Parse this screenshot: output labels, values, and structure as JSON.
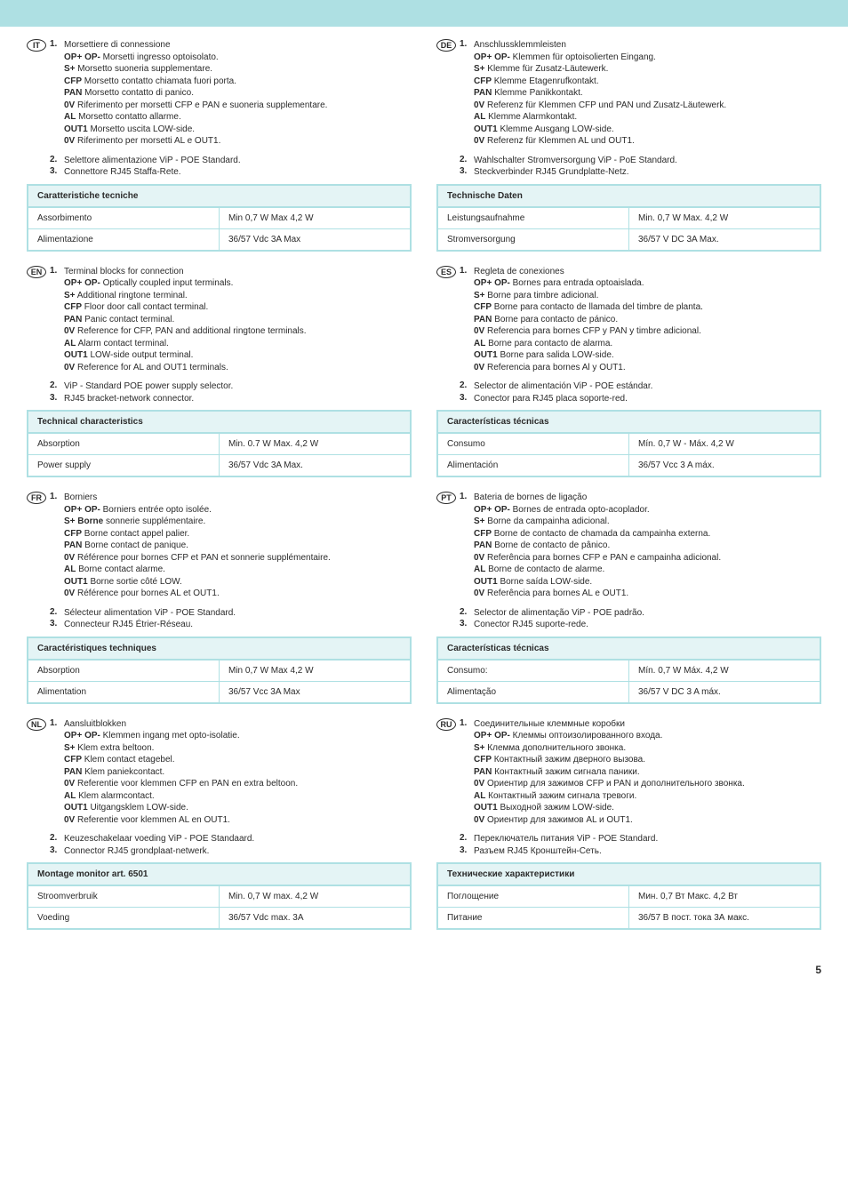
{
  "footer_page": "5",
  "table_header_bg": "#e4f4f5",
  "accent_border": "#aee0e3",
  "sections": [
    {
      "lang": "IT",
      "items": [
        {
          "n": "1.",
          "title": "Morsettiere di connessione",
          "lines": [
            [
              "OP+ OP-",
              " Morsetti ingresso optoisolato."
            ],
            [
              "S+",
              " Morsetto suoneria supplementare."
            ],
            [
              "CFP",
              " Morsetto contatto chiamata fuori porta."
            ],
            [
              "PAN",
              " Morsetto contatto di panico."
            ],
            [
              "0V",
              " Riferimento per morsetti CFP e PAN e suoneria supplementare."
            ],
            [
              "AL",
              " Morsetto contatto allarme."
            ],
            [
              "OUT1",
              " Morsetto uscita LOW-side."
            ],
            [
              "0V",
              " Riferimento per morsetti AL e OUT1."
            ]
          ]
        },
        {
          "n": "2.",
          "plain": "Selettore alimentazione ViP - POE Standard."
        },
        {
          "n": "3.",
          "plain": "Connettore RJ45 Staffa-Rete."
        }
      ],
      "table": {
        "header": "Caratteristiche tecniche",
        "rows": [
          [
            "Assorbimento",
            "Min 0,7 W Max  4,2 W"
          ],
          [
            "Alimentazione",
            "36/57 Vdc 3A Max"
          ]
        ]
      }
    },
    {
      "lang": "DE",
      "items": [
        {
          "n": "1.",
          "title": "Anschlussklemmleisten",
          "lines": [
            [
              "OP+ OP-",
              " Klemmen für optoisolierten Eingang."
            ],
            [
              "S+",
              " Klemme für Zusatz-Läutewerk."
            ],
            [
              "CFP",
              " Klemme Etagenrufkontakt."
            ],
            [
              "PAN",
              " Klemme Panikkontakt."
            ],
            [
              "0V",
              " Referenz für Klemmen CFP und PAN und Zusatz-Läutewerk."
            ],
            [
              "AL",
              " Klemme Alarmkontakt."
            ],
            [
              "OUT1",
              " Klemme Ausgang LOW-side."
            ],
            [
              "0V",
              " Referenz für Klemmen AL und OUT1."
            ]
          ]
        },
        {
          "n": "2.",
          "plain": "Wahlschalter Stromversorgung ViP - PoE Standard."
        },
        {
          "n": "3.",
          "plain": "Steckverbinder RJ45 Grundplatte-Netz."
        }
      ],
      "table": {
        "header": "Technische Daten",
        "rows": [
          [
            "Leistungsaufnahme",
            "Min. 0,7 W Max.  4,2 W"
          ],
          [
            "Stromversorgung",
            "36/57 V DC 3A Max."
          ]
        ]
      }
    },
    {
      "lang": "EN",
      "items": [
        {
          "n": "1.",
          "title": "Terminal blocks for connection",
          "lines": [
            [
              "OP+ OP-",
              " Optically coupled input terminals."
            ],
            [
              "S+",
              " Additional ringtone terminal."
            ],
            [
              "CFP",
              " Floor door call contact terminal."
            ],
            [
              "PAN",
              " Panic contact terminal."
            ],
            [
              "0V",
              " Reference for CFP, PAN and additional ringtone terminals."
            ],
            [
              "AL",
              " Alarm contact terminal."
            ],
            [
              "OUT1",
              " LOW-side output terminal."
            ],
            [
              "0V",
              " Reference for AL and OUT1 terminals."
            ]
          ]
        },
        {
          "n": "2.",
          "plain": "ViP - Standard POE power supply selector."
        },
        {
          "n": "3.",
          "plain": "RJ45 bracket-network connector."
        }
      ],
      "table": {
        "header": "Technical characteristics",
        "rows": [
          [
            "Absorption",
            "Min. 0.7 W Max.  4,2 W"
          ],
          [
            "Power supply",
            "36/57 Vdc 3A Max."
          ]
        ]
      }
    },
    {
      "lang": "ES",
      "items": [
        {
          "n": "1.",
          "title": "Regleta de conexiones",
          "lines": [
            [
              "OP+ OP-",
              " Bornes para entrada optoaislada."
            ],
            [
              "S+",
              " Borne para timbre adicional."
            ],
            [
              "CFP",
              " Borne para contacto de llamada del timbre de planta."
            ],
            [
              "PAN",
              " Borne para contacto de pánico."
            ],
            [
              "0V",
              " Referencia para bornes CFP y PAN y timbre adicional."
            ],
            [
              "AL",
              " Borne para contacto de alarma."
            ],
            [
              "OUT1",
              " Borne para salida LOW-side."
            ],
            [
              "0V",
              " Referencia para bornes Al y OUT1."
            ]
          ]
        },
        {
          "n": "2.",
          "plain": "Selector de alimentación ViP - POE estándar."
        },
        {
          "n": "3.",
          "plain": "Conector para RJ45 placa soporte-red."
        }
      ],
      "table": {
        "header": "Características técnicas",
        "rows": [
          [
            "Consumo",
            "Mín. 0,7 W - Máx.  4,2 W"
          ],
          [
            "Alimentación",
            "36/57 Vcc 3 A máx."
          ]
        ]
      }
    },
    {
      "lang": "FR",
      "items": [
        {
          "n": "1.",
          "title": "Borniers",
          "lines": [
            [
              "OP+ OP-",
              " Borniers entrée opto isolée."
            ],
            [
              "S+ Borne",
              " sonnerie supplémentaire."
            ],
            [
              "CFP",
              " Borne contact appel palier."
            ],
            [
              "PAN",
              " Borne contact de panique."
            ],
            [
              "0V",
              " Référence pour bornes CFP et PAN et sonnerie supplémentaire."
            ],
            [
              "AL",
              " Borne contact alarme."
            ],
            [
              "OUT1",
              " Borne sortie côté LOW."
            ],
            [
              "0V",
              " Référence pour bornes AL et OUT1."
            ]
          ]
        },
        {
          "n": "2.",
          "plain": "Sélecteur alimentation ViP - POE Standard."
        },
        {
          "n": "3.",
          "plain": "Connecteur RJ45 Étrier-Réseau."
        }
      ],
      "table": {
        "header": "Caractéristiques techniques",
        "rows": [
          [
            "Absorption",
            "Min 0,7 W Max  4,2 W"
          ],
          [
            "Alimentation",
            "36/57 Vcc 3A Max"
          ]
        ]
      }
    },
    {
      "lang": "PT",
      "items": [
        {
          "n": "1.",
          "title": "Bateria de bornes de ligação",
          "lines": [
            [
              "OP+ OP-",
              " Bornes de entrada opto-acoplador."
            ],
            [
              "S+",
              " Borne da campainha adicional."
            ],
            [
              "CFP",
              " Borne de contacto de chamada da campainha externa."
            ],
            [
              "PAN",
              " Borne de contacto de pânico."
            ],
            [
              "0V",
              " Referência para bornes CFP e PAN e campainha adicional."
            ],
            [
              "AL",
              " Borne de contacto de alarme."
            ],
            [
              "OUT1",
              " Borne saída LOW-side."
            ],
            [
              "0V",
              " Referência para bornes AL e OUT1."
            ]
          ]
        },
        {
          "n": "2.",
          "plain": "Selector de alimentação ViP - POE padrão."
        },
        {
          "n": "3.",
          "plain": "Conector RJ45 suporte-rede."
        }
      ],
      "table": {
        "header": "Características técnicas",
        "rows": [
          [
            "Consumo:",
            "Mín. 0,7 W Máx.  4,2 W"
          ],
          [
            "Alimentação",
            "36/57 V DC 3 A máx."
          ]
        ]
      }
    },
    {
      "lang": "NL",
      "items": [
        {
          "n": "1.",
          "title": "Aansluitblokken",
          "lines": [
            [
              "OP+ OP-",
              " Klemmen ingang met opto-isolatie."
            ],
            [
              "S+",
              " Klem extra beltoon."
            ],
            [
              "CFP",
              " Klem contact etagebel."
            ],
            [
              "PAN",
              " Klem paniekcontact."
            ],
            [
              "0V",
              " Referentie voor klemmen CFP en PAN en extra beltoon."
            ],
            [
              "AL",
              " Klem alarmcontact."
            ],
            [
              "OUT1",
              " Uitgangsklem LOW-side."
            ],
            [
              "0V",
              " Referentie voor klemmen AL en OUT1."
            ]
          ]
        },
        {
          "n": "2.",
          "plain": "Keuzeschakelaar voeding ViP - POE Standaard."
        },
        {
          "n": "3.",
          "plain": "Connector RJ45 grondplaat-netwerk."
        }
      ],
      "table": {
        "header": "Montage monitor art. 6501",
        "rows": [
          [
            "Stroomverbruik",
            "Min. 0,7 W max. 4,2 W"
          ],
          [
            "Voeding",
            "36/57 Vdc max. 3A"
          ]
        ]
      }
    },
    {
      "lang": "RU",
      "items": [
        {
          "n": "1.",
          "title": "Соединительные клеммные коробки",
          "lines": [
            [
              "OP+ OP-",
              " Клеммы оптоизолированного входа."
            ],
            [
              "S+",
              " Клемма дополнительного звонка."
            ],
            [
              "CFP",
              " Контактный зажим дверного вызова."
            ],
            [
              "PAN",
              " Контактный зажим сигнала паники."
            ],
            [
              "0V",
              " Ориентир для зажимов CFP и PAN и дополнительного звонка."
            ],
            [
              "AL",
              " Контактный зажим сигнала тревоги."
            ],
            [
              "OUT1",
              " Выходной зажим LOW-side."
            ],
            [
              "0V",
              " Ориентир для зажимов AL и OUT1."
            ]
          ]
        },
        {
          "n": "2.",
          "plain": "Переключатель питания ViP - POE Standard."
        },
        {
          "n": "3.",
          "plain": "Разъем RJ45 Кронштейн-Сеть."
        }
      ],
      "table": {
        "header": "Технические характеристики",
        "rows": [
          [
            "Поглощение",
            "Мин. 0,7 Вт Макс.  4,2 Вт"
          ],
          [
            "Питание",
            "36/57 В пост. тока 3А макс."
          ]
        ]
      }
    }
  ]
}
